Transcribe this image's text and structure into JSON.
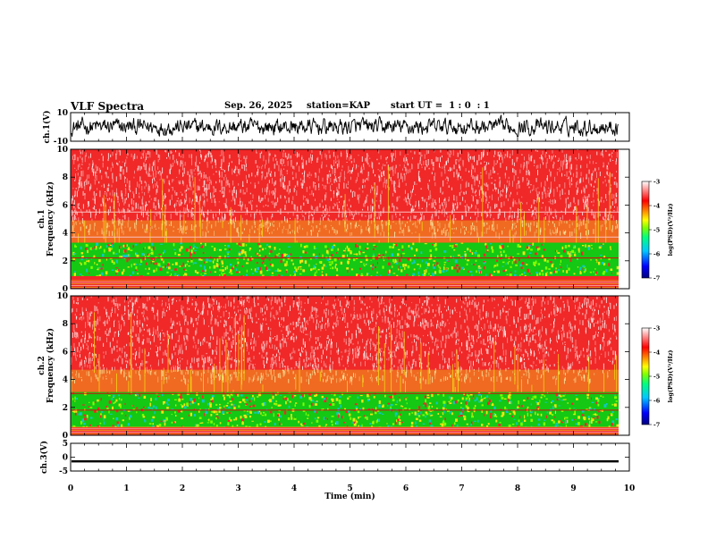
{
  "header": {
    "title": "VLF Spectra",
    "date": "Sep. 26, 2025",
    "station": "station=KAP",
    "start_ut": "start UT =  1 : 0  : 1"
  },
  "colors": {
    "spec_low": "#14c814",
    "spec_mid": "#f0e614",
    "spec_high": "#f02828",
    "spec_top": "#ffffff",
    "cbar": [
      "#000080",
      "#0000ff",
      "#00c8ff",
      "#00ff80",
      "#80ff00",
      "#ffff00",
      "#ff8000",
      "#ff0000",
      "#ffffff"
    ]
  },
  "chart_data": [
    {
      "type": "line",
      "panel": "ch1-waveform",
      "ylabel": "ch.1(V)",
      "ylim": [
        -10,
        10
      ],
      "yticks": [
        "10",
        "-10"
      ],
      "xlim": [
        0,
        10
      ],
      "description_values": {
        "baseline": 0,
        "amplitude": 5
      }
    },
    {
      "type": "heatmap",
      "panel": "ch1-spectrogram",
      "ylabel": "ch.1\nFrequency (kHz)",
      "ylim": [
        0,
        10
      ],
      "yticks": [
        "0",
        "2",
        "4",
        "6",
        "8",
        "10"
      ],
      "xlim": [
        0,
        10
      ],
      "green_band_khz": [
        0.9,
        3.3
      ],
      "lines_khz": [
        2.2,
        3.7,
        5.5
      ],
      "colorbar": {
        "label": "log(PSD)(V²/Hz)",
        "ticks": [
          "-3",
          "-4",
          "-5",
          "-6",
          "-7"
        ],
        "range": [
          -7,
          -3
        ]
      }
    },
    {
      "type": "heatmap",
      "panel": "ch2-spectrogram",
      "ylabel": "ch.2\nFrequency (kHz)",
      "ylim": [
        0,
        10
      ],
      "yticks": [
        "0",
        "2",
        "4",
        "6",
        "8",
        "10"
      ],
      "xlim": [
        0,
        10
      ],
      "green_band_khz": [
        0.6,
        3.1
      ],
      "lines_khz": [
        1.8,
        3.0
      ],
      "colorbar": {
        "label": "log(PSD)(V²/Hz)",
        "ticks": [
          "-3",
          "-4",
          "-5",
          "-6",
          "-7"
        ],
        "range": [
          -7,
          -3
        ]
      }
    },
    {
      "type": "line",
      "panel": "ch3-waveform",
      "ylabel": "ch.3(V)",
      "ylim": [
        -5,
        5
      ],
      "yticks": [
        "5",
        "0",
        "-5"
      ],
      "xlim": [
        0,
        10
      ],
      "xticks": [
        "0",
        "1",
        "2",
        "3",
        "4",
        "5",
        "6",
        "7",
        "8",
        "9",
        "10"
      ],
      "xlabel": "Time (min)",
      "description_values": {
        "level": -1.5
      }
    }
  ]
}
